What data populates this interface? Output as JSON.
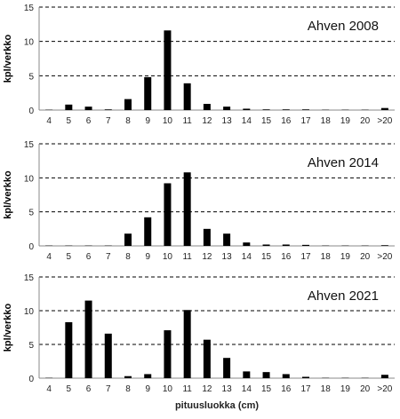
{
  "chart_data": [
    {
      "type": "bar",
      "title": "Ahven 2008",
      "ylabel": "kpl/verkko",
      "xlabel": "",
      "ylim": [
        0,
        15
      ],
      "yticks": [
        0,
        5,
        10,
        15
      ],
      "grid": "dashed-horizontal",
      "categories": [
        "4",
        "5",
        "6",
        "7",
        "8",
        "9",
        "10",
        "11",
        "12",
        "13",
        "14",
        "15",
        "16",
        "17",
        "18",
        "19",
        "20",
        ">20"
      ],
      "values": [
        0.05,
        0.8,
        0.5,
        0.1,
        1.6,
        4.8,
        11.6,
        3.9,
        0.9,
        0.5,
        0.2,
        0.1,
        0.1,
        0.1,
        0.05,
        0.05,
        0.05,
        0.3
      ]
    },
    {
      "type": "bar",
      "title": "Ahven 2014",
      "ylabel": "kpl/verkko",
      "xlabel": "",
      "ylim": [
        0,
        15
      ],
      "yticks": [
        0,
        5,
        10,
        15
      ],
      "grid": "dashed-horizontal",
      "categories": [
        "4",
        "5",
        "6",
        "7",
        "8",
        "9",
        "10",
        "11",
        "12",
        "13",
        "14",
        "15",
        "16",
        "17",
        "18",
        "19",
        "20",
        ">20"
      ],
      "values": [
        0.05,
        0.05,
        0.05,
        0.05,
        1.8,
        4.2,
        9.2,
        10.8,
        2.5,
        1.8,
        0.5,
        0.2,
        0.2,
        0.15,
        0.05,
        0.05,
        0.05,
        0.1
      ]
    },
    {
      "type": "bar",
      "title": "Ahven 2021",
      "ylabel": "kpl/verkko",
      "xlabel": "pituusluokka (cm)",
      "ylim": [
        0,
        15
      ],
      "yticks": [
        0,
        5,
        10,
        15
      ],
      "grid": "dashed-horizontal",
      "categories": [
        "4",
        "5",
        "6",
        "7",
        "8",
        "9",
        "10",
        "11",
        "12",
        "13",
        "14",
        "15",
        "16",
        "17",
        "18",
        "19",
        "20",
        ">20"
      ],
      "values": [
        0.05,
        8.3,
        11.5,
        6.6,
        0.3,
        0.6,
        7.1,
        10.1,
        5.7,
        3.0,
        1.0,
        0.9,
        0.6,
        0.2,
        0.05,
        0.05,
        0.05,
        0.5
      ]
    }
  ]
}
